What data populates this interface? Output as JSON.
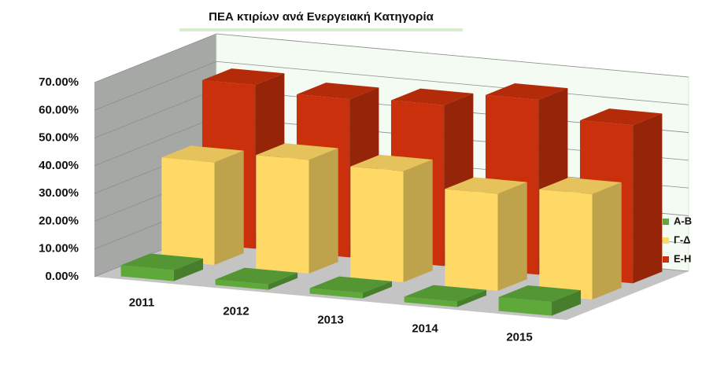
{
  "chart_data": {
    "type": "bar3d",
    "title": "ΠΕΑ κτιρίων ανά Ενεργειακή  Κατηγορία",
    "categories": [
      "2011",
      "2012",
      "2013",
      "2014",
      "2015"
    ],
    "series": [
      {
        "name": "Α-Β",
        "color": "#5fa83a",
        "values": [
          4,
          2,
          2,
          2,
          5
        ]
      },
      {
        "name": "Γ-Δ",
        "color": "#ffd966",
        "values": [
          37,
          41,
          40,
          35,
          38
        ]
      },
      {
        "name": "Ε-Η",
        "color": "#c9300b",
        "values": [
          59,
          57,
          58,
          63,
          57
        ]
      }
    ],
    "ylim": [
      0,
      70
    ],
    "yticks": [
      {
        "value": 0,
        "label": "0.00%"
      },
      {
        "value": 10,
        "label": "10.00%"
      },
      {
        "value": 20,
        "label": "20.00%"
      },
      {
        "value": 30,
        "label": "30.00%"
      },
      {
        "value": 40,
        "label": "40.00%"
      },
      {
        "value": 50,
        "label": "50.00%"
      },
      {
        "value": 60,
        "label": "60.00%"
      },
      {
        "value": 70,
        "label": "70.00%"
      }
    ],
    "grid": true,
    "legend": "right"
  }
}
